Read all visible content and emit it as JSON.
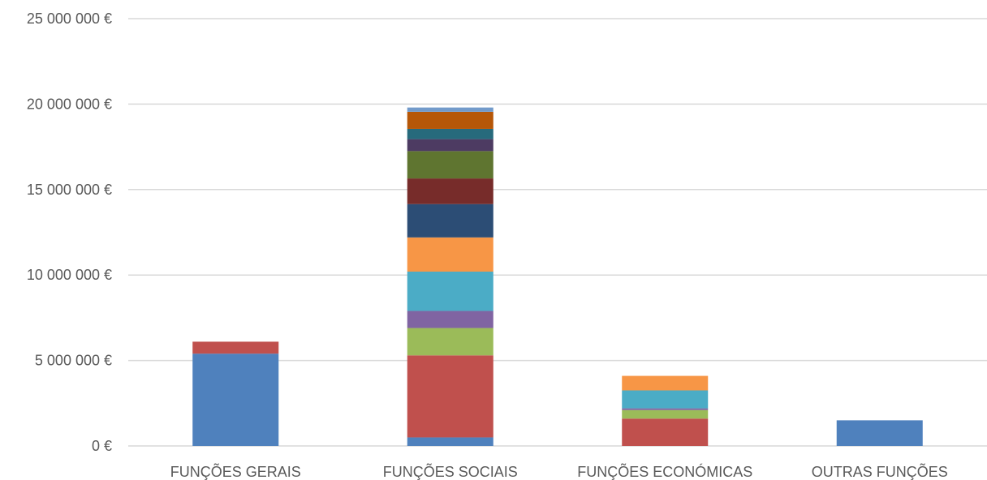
{
  "chart_data": {
    "type": "bar",
    "stacked": true,
    "title": "",
    "xlabel": "",
    "ylabel": "",
    "ylim": [
      0,
      25000000
    ],
    "y_ticks": [
      0,
      5000000,
      10000000,
      15000000,
      20000000,
      25000000
    ],
    "y_tick_labels": [
      "0 €",
      "5 000 000 €",
      "10 000 000 €",
      "15 000 000 €",
      "20 000 000 €",
      "25 000 000 €"
    ],
    "grid": true,
    "legend": "none",
    "categories": [
      "FUNÇÕES GERAIS",
      "FUNÇÕES SOCIAIS",
      "FUNÇÕES ECONÓMICAS",
      "OUTRAS FUNÇÕES"
    ],
    "stacks": [
      {
        "category": "FUNÇÕES GERAIS",
        "segments": [
          {
            "value": 5400000,
            "color": "#4f81bd"
          },
          {
            "value": 700000,
            "color": "#c0504d"
          }
        ]
      },
      {
        "category": "FUNÇÕES SOCIAIS",
        "segments": [
          {
            "value": 500000,
            "color": "#4f81bd"
          },
          {
            "value": 4800000,
            "color": "#c0504d"
          },
          {
            "value": 1600000,
            "color": "#9bbb59"
          },
          {
            "value": 1000000,
            "color": "#8064a2"
          },
          {
            "value": 2300000,
            "color": "#4bacc6"
          },
          {
            "value": 2000000,
            "color": "#f79646"
          },
          {
            "value": 1950000,
            "color": "#2c4d75"
          },
          {
            "value": 1500000,
            "color": "#772c2a"
          },
          {
            "value": 1600000,
            "color": "#5f7530"
          },
          {
            "value": 700000,
            "color": "#4d3b62"
          },
          {
            "value": 600000,
            "color": "#276a7c"
          },
          {
            "value": 1000000,
            "color": "#b65708"
          },
          {
            "value": 250000,
            "color": "#729aca"
          }
        ]
      },
      {
        "category": "FUNÇÕES ECONÓMICAS",
        "segments": [
          {
            "value": 1600000,
            "color": "#c0504d"
          },
          {
            "value": 500000,
            "color": "#9bbb59"
          },
          {
            "value": 100000,
            "color": "#8064a2"
          },
          {
            "value": 1050000,
            "color": "#4bacc6"
          },
          {
            "value": 850000,
            "color": "#f79646"
          }
        ]
      },
      {
        "category": "OUTRAS FUNÇÕES",
        "segments": [
          {
            "value": 1500000,
            "color": "#4f81bd"
          }
        ]
      }
    ]
  }
}
